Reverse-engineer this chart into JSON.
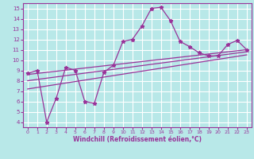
{
  "background_color": "#b8e8e8",
  "grid_color": "#ffffff",
  "line_color": "#993399",
  "xlabel": "Windchill (Refroidissement éolien,°C)",
  "ylim": [
    3.5,
    15.5
  ],
  "xlim": [
    -0.5,
    23.5
  ],
  "yticks": [
    4,
    5,
    6,
    7,
    8,
    9,
    10,
    11,
    12,
    13,
    14,
    15
  ],
  "xticks": [
    0,
    1,
    2,
    3,
    4,
    5,
    6,
    7,
    8,
    9,
    10,
    11,
    12,
    13,
    14,
    15,
    16,
    17,
    18,
    19,
    20,
    21,
    22,
    23
  ],
  "series1_x": [
    0,
    1,
    2,
    3,
    4,
    5,
    6,
    7,
    8,
    9,
    10,
    11,
    12,
    13,
    14,
    15,
    16,
    17,
    18,
    19,
    20,
    21,
    22,
    23
  ],
  "series1_y": [
    8.7,
    9.0,
    4.0,
    6.3,
    9.3,
    9.0,
    6.0,
    5.8,
    8.8,
    9.5,
    11.8,
    12.0,
    13.3,
    15.0,
    15.1,
    13.8,
    11.8,
    11.3,
    10.7,
    10.4,
    10.4,
    11.5,
    11.9,
    11.0
  ],
  "series2_x": [
    0,
    23
  ],
  "series2_y": [
    8.6,
    11.0
  ],
  "series3_x": [
    0,
    23
  ],
  "series3_y": [
    8.0,
    10.8
  ],
  "series4_x": [
    0,
    23
  ],
  "series4_y": [
    7.2,
    10.5
  ]
}
